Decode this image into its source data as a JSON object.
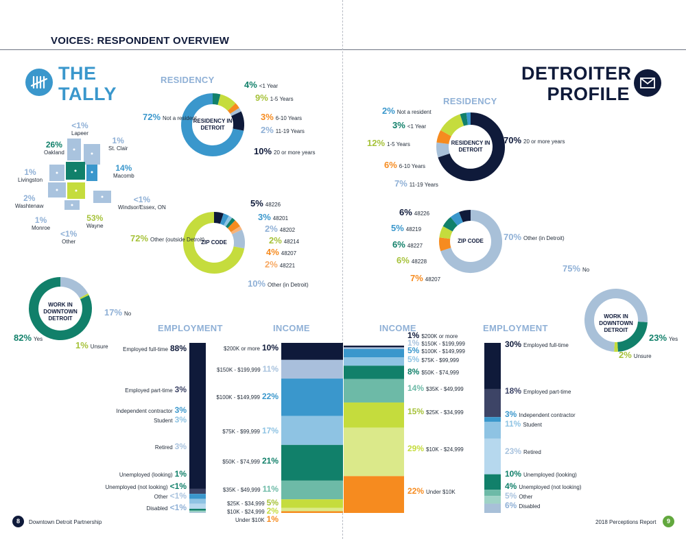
{
  "header": {
    "title": "VOICES: RESPONDENT OVERVIEW"
  },
  "tally": {
    "title_line1": "THE",
    "title_line2": "TALLY"
  },
  "profile": {
    "title_line1": "DETROITER",
    "title_line2": "PROFILE"
  },
  "colors": {
    "navy": "#0f1a3a",
    "blue": "#3a97cc",
    "lightblue": "#8ec3e3",
    "paleblue": "#a9c3de",
    "teal": "#11806a",
    "seafoam": "#6dbaa7",
    "lime": "#c5dc3d",
    "palelime": "#dbe98a",
    "orange": "#f68b1f",
    "lightorange": "#f7b278",
    "gray": "#a8c0d8"
  },
  "chart_data": [
    {
      "type": "pie",
      "id": "tally_residency",
      "section_label": "RESIDENCY",
      "center_label": "RESIDENCY IN DETROIT",
      "slices": [
        {
          "label": "<1 Year",
          "value": 4,
          "pct": "4%"
        },
        {
          "label": "1-5 Years",
          "value": 9,
          "pct": "9%"
        },
        {
          "label": "6-10 Years",
          "value": 3,
          "pct": "3%"
        },
        {
          "label": "11-19 Years",
          "value": 2,
          "pct": "2%"
        },
        {
          "label": "20 or more years",
          "value": 10,
          "pct": "10%"
        },
        {
          "label": "Not a resident",
          "value": 72,
          "pct": "72%"
        }
      ]
    },
    {
      "type": "pie",
      "id": "tally_zip",
      "center_label": "ZIP CODE",
      "slices": [
        {
          "label": "48226",
          "value": 5,
          "pct": "5%"
        },
        {
          "label": "48201",
          "value": 3,
          "pct": "3%"
        },
        {
          "label": "48202",
          "value": 2,
          "pct": "2%"
        },
        {
          "label": "48214",
          "value": 2,
          "pct": "2%"
        },
        {
          "label": "48207",
          "value": 4,
          "pct": "4%"
        },
        {
          "label": "48221",
          "value": 2,
          "pct": "2%"
        },
        {
          "label": "Other (in Detroit)",
          "value": 10,
          "pct": "10%"
        },
        {
          "label": "Other (outside Detroit)",
          "value": 72,
          "pct": "72%"
        }
      ]
    },
    {
      "type": "pie",
      "id": "tally_work",
      "center_label": "WORK IN DOWNTOWN DETROIT",
      "slices": [
        {
          "label": "No",
          "value": 17,
          "pct": "17%"
        },
        {
          "label": "Unsure",
          "value": 1,
          "pct": "1%"
        },
        {
          "label": "Yes",
          "value": 82,
          "pct": "82%"
        }
      ]
    },
    {
      "type": "pie",
      "id": "profile_residency",
      "section_label": "RESIDENCY",
      "center_label": "RESIDENCY IN DETROIT",
      "slices": [
        {
          "label": "20 or more years",
          "value": 70,
          "pct": "70%"
        },
        {
          "label": "11-19 Years",
          "value": 7,
          "pct": "7%"
        },
        {
          "label": "6-10 Years",
          "value": 6,
          "pct": "6%"
        },
        {
          "label": "1-5 Years",
          "value": 12,
          "pct": "12%"
        },
        {
          "label": "<1 Year",
          "value": 3,
          "pct": "3%"
        },
        {
          "label": "Not a resident",
          "value": 2,
          "pct": "2%"
        }
      ]
    },
    {
      "type": "pie",
      "id": "profile_zip",
      "center_label": "ZIP CODE",
      "slices": [
        {
          "label": "Other (in Detroit)",
          "value": 70,
          "pct": "70%"
        },
        {
          "label": "48207",
          "value": 7,
          "pct": "7%"
        },
        {
          "label": "48228",
          "value": 6,
          "pct": "6%"
        },
        {
          "label": "48227",
          "value": 6,
          "pct": "6%"
        },
        {
          "label": "48219",
          "value": 5,
          "pct": "5%"
        },
        {
          "label": "48226",
          "value": 6,
          "pct": "6%"
        }
      ]
    },
    {
      "type": "pie",
      "id": "profile_work",
      "center_label": "WORK IN DOWNTOWN DETROIT",
      "slices": [
        {
          "label": "Yes",
          "value": 23,
          "pct": "23%"
        },
        {
          "label": "Unsure",
          "value": 2,
          "pct": "2%"
        },
        {
          "label": "No",
          "value": 75,
          "pct": "75%"
        }
      ]
    },
    {
      "type": "bar",
      "id": "tally_employment",
      "section_label": "EMPLOYMENT",
      "stacked": true,
      "categories": [
        "Employed full-time",
        "Employed part-time",
        "Independent contractor",
        "Student",
        "Retired",
        "Unemployed (looking)",
        "Unemployed (not looking)",
        "Other",
        "Disabled"
      ],
      "values": [
        88,
        3,
        3,
        3,
        3,
        1,
        0.5,
        0.5,
        0.5
      ],
      "pct": [
        "88%",
        "3%",
        "3%",
        "3%",
        "3%",
        "1%",
        "<1%",
        "<1%",
        "<1%"
      ]
    },
    {
      "type": "bar",
      "id": "tally_income",
      "section_label": "INCOME",
      "stacked": true,
      "categories": [
        "$200K or more",
        "$150K - $199,999",
        "$100K - $149,999",
        "$75K - $99,999",
        "$50K - $74,999",
        "$35K - $49,999",
        "$25K - $34,999",
        "$10K - $24,999",
        "Under $10K"
      ],
      "values": [
        10,
        11,
        22,
        17,
        21,
        11,
        5,
        2,
        1
      ],
      "pct": [
        "10%",
        "11%",
        "22%",
        "17%",
        "21%",
        "11%",
        "5%",
        "2%",
        "1%"
      ]
    },
    {
      "type": "bar",
      "id": "profile_income",
      "section_label": "INCOME",
      "stacked": true,
      "categories": [
        "$200K or more",
        "$150K - $199,999",
        "$100K - $149,999",
        "$75K - $99,999",
        "$50K - $74,999",
        "$35K - $49,999",
        "$25K - $34,999",
        "$10K - $24,999",
        "Under $10K"
      ],
      "values": [
        1,
        1,
        5,
        5,
        8,
        14,
        15,
        29,
        22
      ],
      "pct": [
        "1%",
        "1%",
        "5%",
        "5%",
        "8%",
        "14%",
        "15%",
        "29%",
        "22%"
      ]
    },
    {
      "type": "bar",
      "id": "profile_employment",
      "section_label": "EMPLOYMENT",
      "stacked": true,
      "categories": [
        "Employed full-time",
        "Employed part-time",
        "Independent contractor",
        "Student",
        "Retired",
        "Unemployed (looking)",
        "Unemployed (not looking)",
        "Other",
        "Disabled"
      ],
      "values": [
        30,
        18,
        3,
        11,
        23,
        10,
        4,
        5,
        6
      ],
      "pct": [
        "30%",
        "18%",
        "3%",
        "11%",
        "23%",
        "10%",
        "4%",
        "5%",
        "6%"
      ]
    }
  ],
  "map": {
    "regions": [
      {
        "label": "Lapeer",
        "pct": "<1%"
      },
      {
        "label": "St. Clair",
        "pct": "1%"
      },
      {
        "label": "Oakland",
        "pct": "26%"
      },
      {
        "label": "Macomb",
        "pct": "14%"
      },
      {
        "label": "Livingston",
        "pct": "1%"
      },
      {
        "label": "Washtenaw",
        "pct": "2%"
      },
      {
        "label": "Windsor/Essex, ON",
        "pct": "<1%"
      },
      {
        "label": "Wayne",
        "pct": "53%"
      },
      {
        "label": "Monroe",
        "pct": "1%"
      },
      {
        "label": "Other",
        "pct": "<1%"
      }
    ]
  },
  "footer": {
    "left_page": "8",
    "left_text": "Downtown Detroit Partnership",
    "right_text": "2018 Perceptions Report",
    "right_page": "9"
  }
}
